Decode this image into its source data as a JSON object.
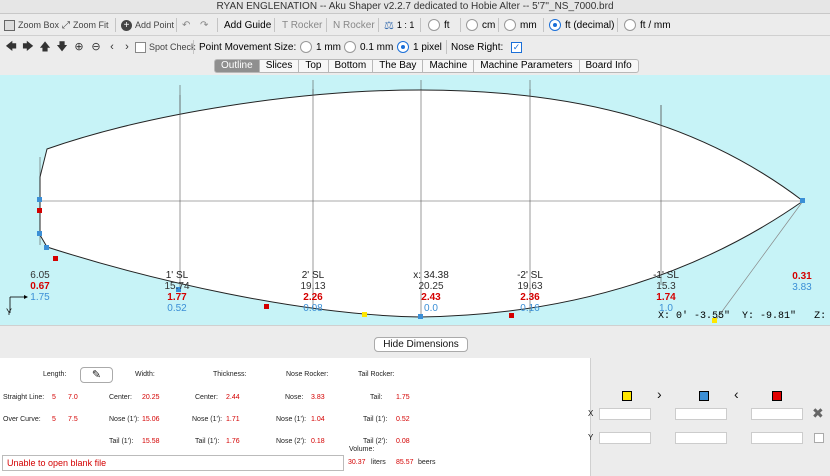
{
  "title": "RYAN ENGLENATION -- Aku Shaper v2.2.7 dedicated to Hobie Alter  --  5'7''_NS_7000.brd",
  "toolbar": {
    "zoom_box": "Zoom Box",
    "zoom_fit": "Zoom Fit",
    "add_point": "Add Point",
    "add_guide": "Add Guide",
    "t_rocker": "T Rocker",
    "n_rocker": "N Rocker",
    "scale": "1 : 1",
    "units": [
      {
        "label": "ft",
        "selected": false
      },
      {
        "label": "cm",
        "selected": false
      },
      {
        "label": "mm",
        "selected": false
      },
      {
        "label": "ft (decimal)",
        "selected": true
      },
      {
        "label": "ft / mm",
        "selected": false
      }
    ]
  },
  "toolbar2": {
    "spot_check": "Spot Check",
    "spot_check_checked": false,
    "point_movement_label": "Point Movement Size:",
    "movement_options": [
      {
        "label": "1 mm",
        "selected": false
      },
      {
        "label": "0.1 mm",
        "selected": false
      },
      {
        "label": "1 pixel",
        "selected": true
      }
    ],
    "nose_right_label": "Nose Right:",
    "nose_right_checked": true
  },
  "tabs": [
    {
      "label": "Outline",
      "active": true
    },
    {
      "label": "Slices",
      "active": false
    },
    {
      "label": "Top",
      "active": false
    },
    {
      "label": "Bottom",
      "active": false
    },
    {
      "label": "The Bay",
      "active": false
    },
    {
      "label": "Machine",
      "active": false
    },
    {
      "label": "Machine Parameters",
      "active": false
    },
    {
      "label": "Board Info",
      "active": false
    }
  ],
  "canvas": {
    "axis_label": "Y",
    "dims": [
      {
        "name": "tail-end",
        "top": "6.05",
        "mid": "",
        "red": "0.67",
        "blue": "1.75"
      },
      {
        "name": "1-sl",
        "top": "1' SL",
        "mid": "15.74",
        "red": "1.77",
        "blue": "0.52"
      },
      {
        "name": "2-sl",
        "top": "2' SL",
        "mid": "19.13",
        "red": "2.26",
        "blue": "0.08"
      },
      {
        "name": "center",
        "top": "x: 34.38",
        "mid": "20.25",
        "red": "2.43",
        "blue": "0.0"
      },
      {
        "name": "neg2-sl",
        "top": "-2' SL",
        "mid": "19.63",
        "red": "2.36",
        "blue": "0.16"
      },
      {
        "name": "neg1-sl",
        "top": "-1' SL",
        "mid": "15.3",
        "red": "1.74",
        "blue": "1.0"
      },
      {
        "name": "nose-end",
        "top": "",
        "mid": "",
        "red": "0.31",
        "blue": "3.83"
      }
    ],
    "coords": {
      "x": "X: 0' -3.55\"",
      "y": "Y: -9.81\"",
      "z": "Z:"
    }
  },
  "hide_dimensions": "Hide Dimensions",
  "stats": {
    "length_label": "Length:",
    "width_label": "Width:",
    "thickness_label": "Thickness:",
    "nose_rocker_label": "Nose Rocker:",
    "tail_rocker_label": "Tail Rocker:",
    "volume_label": "Volume:",
    "straight_line": {
      "label": "Straight Line:",
      "ft": "5",
      "in": "7.0"
    },
    "over_curve": {
      "label": "Over Curve:",
      "ft": "5",
      "in": "7.5"
    },
    "width": {
      "center_label": "Center:",
      "center": "20.25",
      "nose_label": "Nose (1'):",
      "nose": "15.06",
      "tail_label": "Tail (1'):",
      "tail": "15.58"
    },
    "thickness": {
      "center_label": "Center:",
      "center": "2.44",
      "nose_label": "Nose (1'):",
      "nose": "1.71",
      "tail_label": "Tail (1'):",
      "tail": "1.76"
    },
    "nose_rocker": {
      "nose_label": "Nose:",
      "nose": "3.83",
      "n1_label": "Nose (1'):",
      "n1": "1.04",
      "n2_label": "Nose (2'):",
      "n2": "0.18"
    },
    "tail_rocker": {
      "tail_label": "Tail:",
      "tail": "1.75",
      "t1_label": "Tail (1'):",
      "t1": "0.52",
      "t2_label": "Tail (2'):",
      "t2": "0.08"
    },
    "volume_liters": "30.37",
    "liters_label": "liters",
    "volume_beers": "85.57",
    "beers_label": "beers"
  },
  "status": "Unable to open blank file",
  "point_editor": {
    "x_label": "X",
    "y_label": "Y",
    "colors": {
      "yellow": "#ffe600",
      "blue": "#3b8fd6",
      "red": "#e00000"
    }
  }
}
